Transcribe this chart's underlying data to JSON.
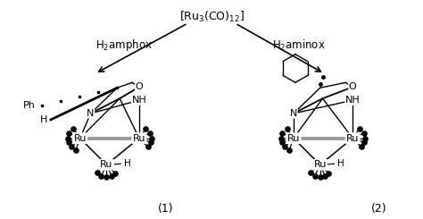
{
  "title": "[Ru$_3$(CO)$_{12}$]",
  "label1": "H$_2$amphox",
  "label2": "H$_2$aminox",
  "compound1": "(1)",
  "compound2": "(2)",
  "bg_color": "#ffffff",
  "fg_color": "#000000",
  "gray_color": "#999999",
  "figw": 4.74,
  "figh": 2.45,
  "dpi": 100
}
